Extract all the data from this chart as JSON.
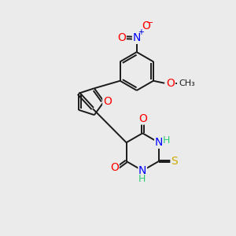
{
  "background_color": "#ebebeb",
  "bond_color": "#1a1a1a",
  "bond_width": 1.4,
  "atom_colors": {
    "O": "#ff0000",
    "N": "#0000ff",
    "S": "#ccaa00",
    "H": "#2ecc71",
    "C": "#1a1a1a"
  },
  "font_size": 9,
  "fig_size": [
    3.0,
    3.0
  ],
  "dpi": 100
}
